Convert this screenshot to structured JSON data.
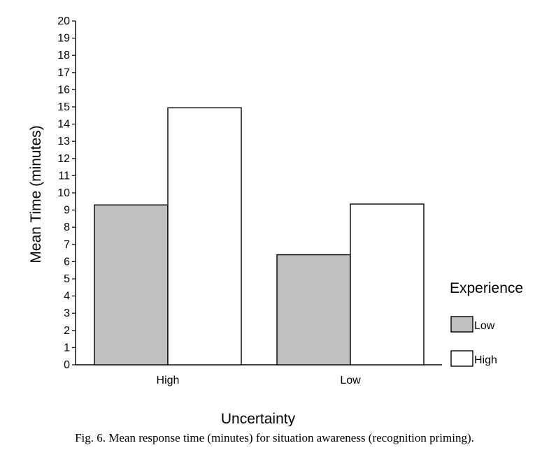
{
  "chart_data": {
    "type": "bar",
    "categories": [
      "High",
      "Low"
    ],
    "series": [
      {
        "name": "Low",
        "values": [
          9.3,
          6.4
        ],
        "color": "#bfbfbf"
      },
      {
        "name": "High",
        "values": [
          14.95,
          9.35
        ],
        "color": "#ffffff"
      }
    ],
    "xlabel": "Uncertainty",
    "ylabel": "Mean Time (minutes)",
    "ylim": [
      0,
      20
    ],
    "yticks": [
      0,
      1,
      2,
      3,
      4,
      5,
      6,
      7,
      8,
      9,
      10,
      11,
      12,
      13,
      14,
      15,
      16,
      17,
      18,
      19,
      20
    ],
    "legend_title": "Experience",
    "legend_position": "right",
    "grid": false
  },
  "caption": "Fig. 6.  Mean response time (minutes) for situation awareness (recognition priming)."
}
